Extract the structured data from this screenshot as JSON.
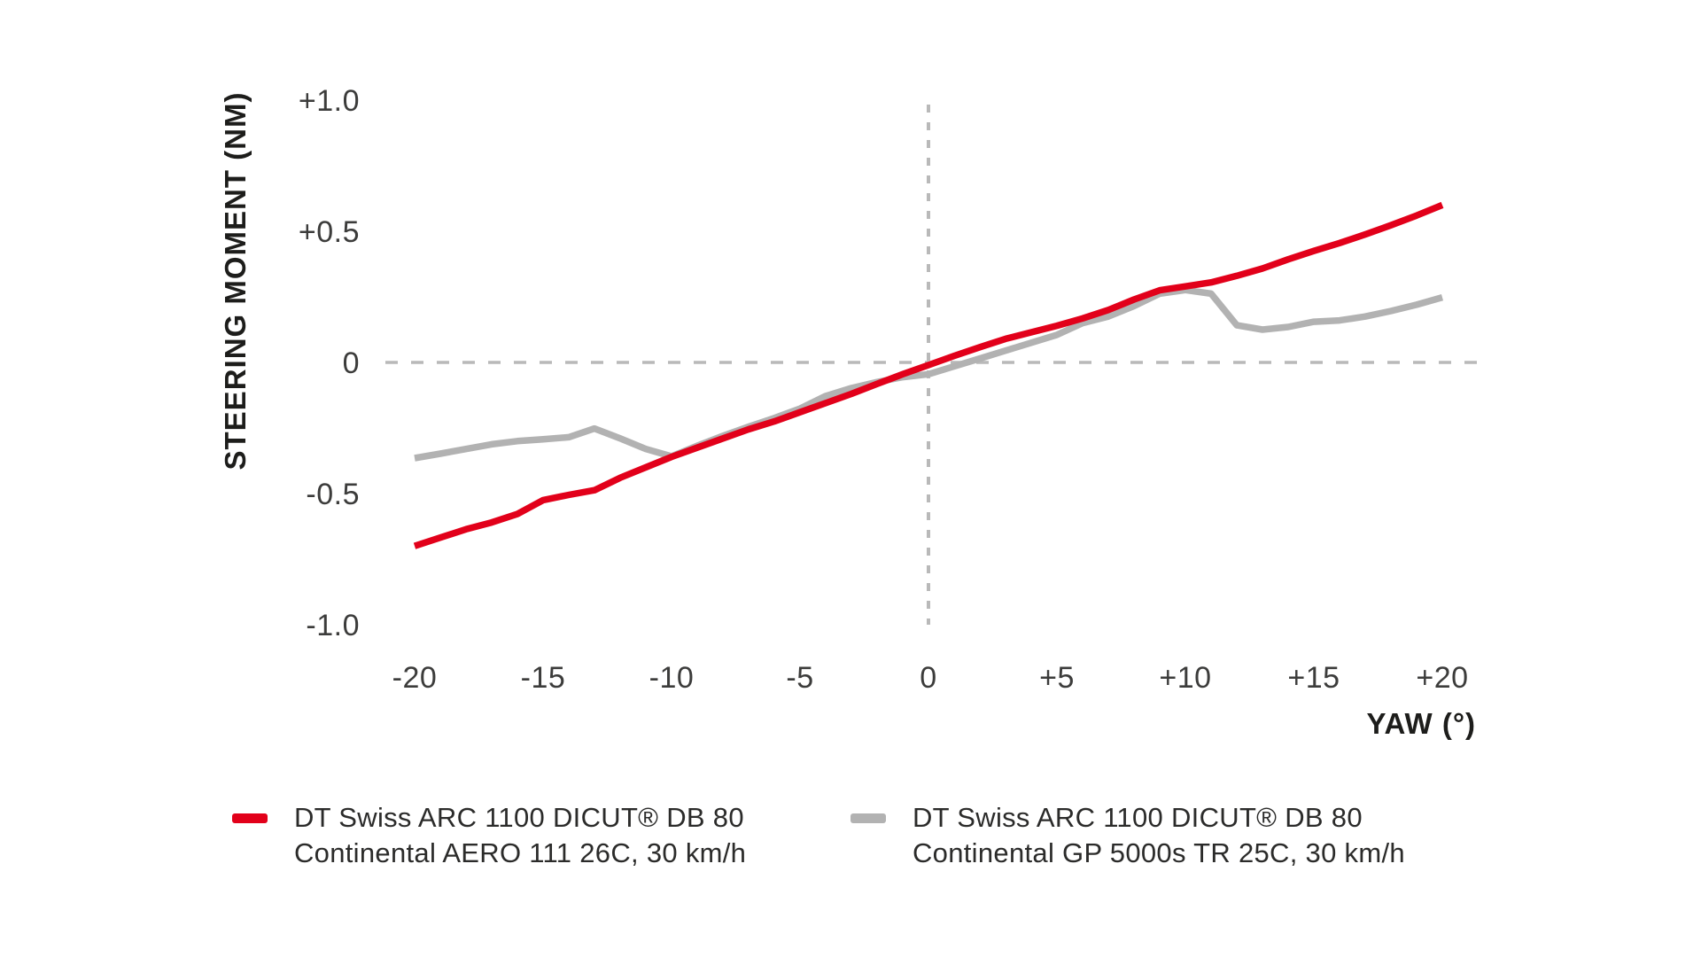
{
  "colors": {
    "red": "#e2001a",
    "gray": "#b2b2b2",
    "dash": "#b9b9b9",
    "tick_text": "#3c3c3b",
    "title_text": "#1d1d1b",
    "background": "#ffffff"
  },
  "chart_data": {
    "type": "line",
    "title": "",
    "xlabel": "YAW (°)",
    "ylabel": "STEERING MOMENT (NM)",
    "xlim": [
      -20,
      20
    ],
    "ylim": [
      -1.0,
      1.0
    ],
    "grid": "dashed zero axes only",
    "legend_position": "bottom",
    "x_tick_values": [
      -20,
      -15,
      -10,
      -5,
      0,
      5,
      10,
      15,
      20
    ],
    "x_tick_labels": [
      "-20",
      "-15",
      "-10",
      "-5",
      "0",
      "+5",
      "+10",
      "+15",
      "+20"
    ],
    "y_tick_values": [
      1.0,
      0.5,
      0,
      -0.5,
      -1.0
    ],
    "y_tick_labels": [
      "+1.0",
      "+0.5",
      "0",
      "-0.5",
      "-1.0"
    ],
    "x": [
      -20,
      -19,
      -18,
      -17,
      -16,
      -15,
      -14,
      -13,
      -12,
      -11,
      -10,
      -9,
      -8,
      -7,
      -6,
      -5,
      -4,
      -3,
      -2,
      -1,
      0,
      1,
      2,
      3,
      4,
      5,
      6,
      7,
      8,
      9,
      10,
      11,
      12,
      13,
      14,
      15,
      16,
      17,
      18,
      19,
      20
    ],
    "series": [
      {
        "key": "aero111",
        "name": "DT Swiss ARC 1100 DICUT® DB 80 — Continental AERO 111 26C, 30 km/h",
        "color": "#e2001a",
        "values": [
          -0.7,
          -0.668,
          -0.636,
          -0.61,
          -0.578,
          -0.525,
          -0.505,
          -0.487,
          -0.44,
          -0.4,
          -0.36,
          -0.325,
          -0.29,
          -0.255,
          -0.225,
          -0.19,
          -0.155,
          -0.12,
          -0.082,
          -0.045,
          -0.01,
          0.025,
          0.058,
          0.09,
          0.115,
          0.14,
          0.168,
          0.2,
          0.24,
          0.275,
          0.29,
          0.305,
          0.33,
          0.358,
          0.393,
          0.425,
          0.455,
          0.488,
          0.523,
          0.56,
          0.6
        ]
      },
      {
        "key": "gp5000s",
        "name": "DT Swiss ARC 1100 DICUT® DB 80 — Continental GP 5000s TR 25C, 30 km/h",
        "color": "#b2b2b2",
        "values": [
          -0.365,
          -0.348,
          -0.33,
          -0.312,
          -0.3,
          -0.293,
          -0.285,
          -0.252,
          -0.29,
          -0.33,
          -0.358,
          -0.318,
          -0.28,
          -0.245,
          -0.212,
          -0.176,
          -0.128,
          -0.098,
          -0.075,
          -0.056,
          -0.045,
          -0.015,
          0.015,
          0.045,
          0.075,
          0.105,
          0.15,
          0.175,
          0.215,
          0.262,
          0.276,
          0.262,
          0.142,
          0.125,
          0.135,
          0.155,
          0.16,
          0.175,
          0.196,
          0.22,
          0.248
        ]
      }
    ]
  },
  "legend": {
    "items": [
      {
        "key": "aero111",
        "line1": "DT Swiss ARC 1100 DICUT® DB 80",
        "line2": "Continental AERO 111 26C, 30 km/h",
        "color": "#e2001a"
      },
      {
        "key": "gp5000s",
        "line1": "DT Swiss ARC 1100 DICUT® DB 80",
        "line2": "Continental GP 5000s TR 25C, 30 km/h",
        "color": "#b2b2b2"
      }
    ]
  }
}
